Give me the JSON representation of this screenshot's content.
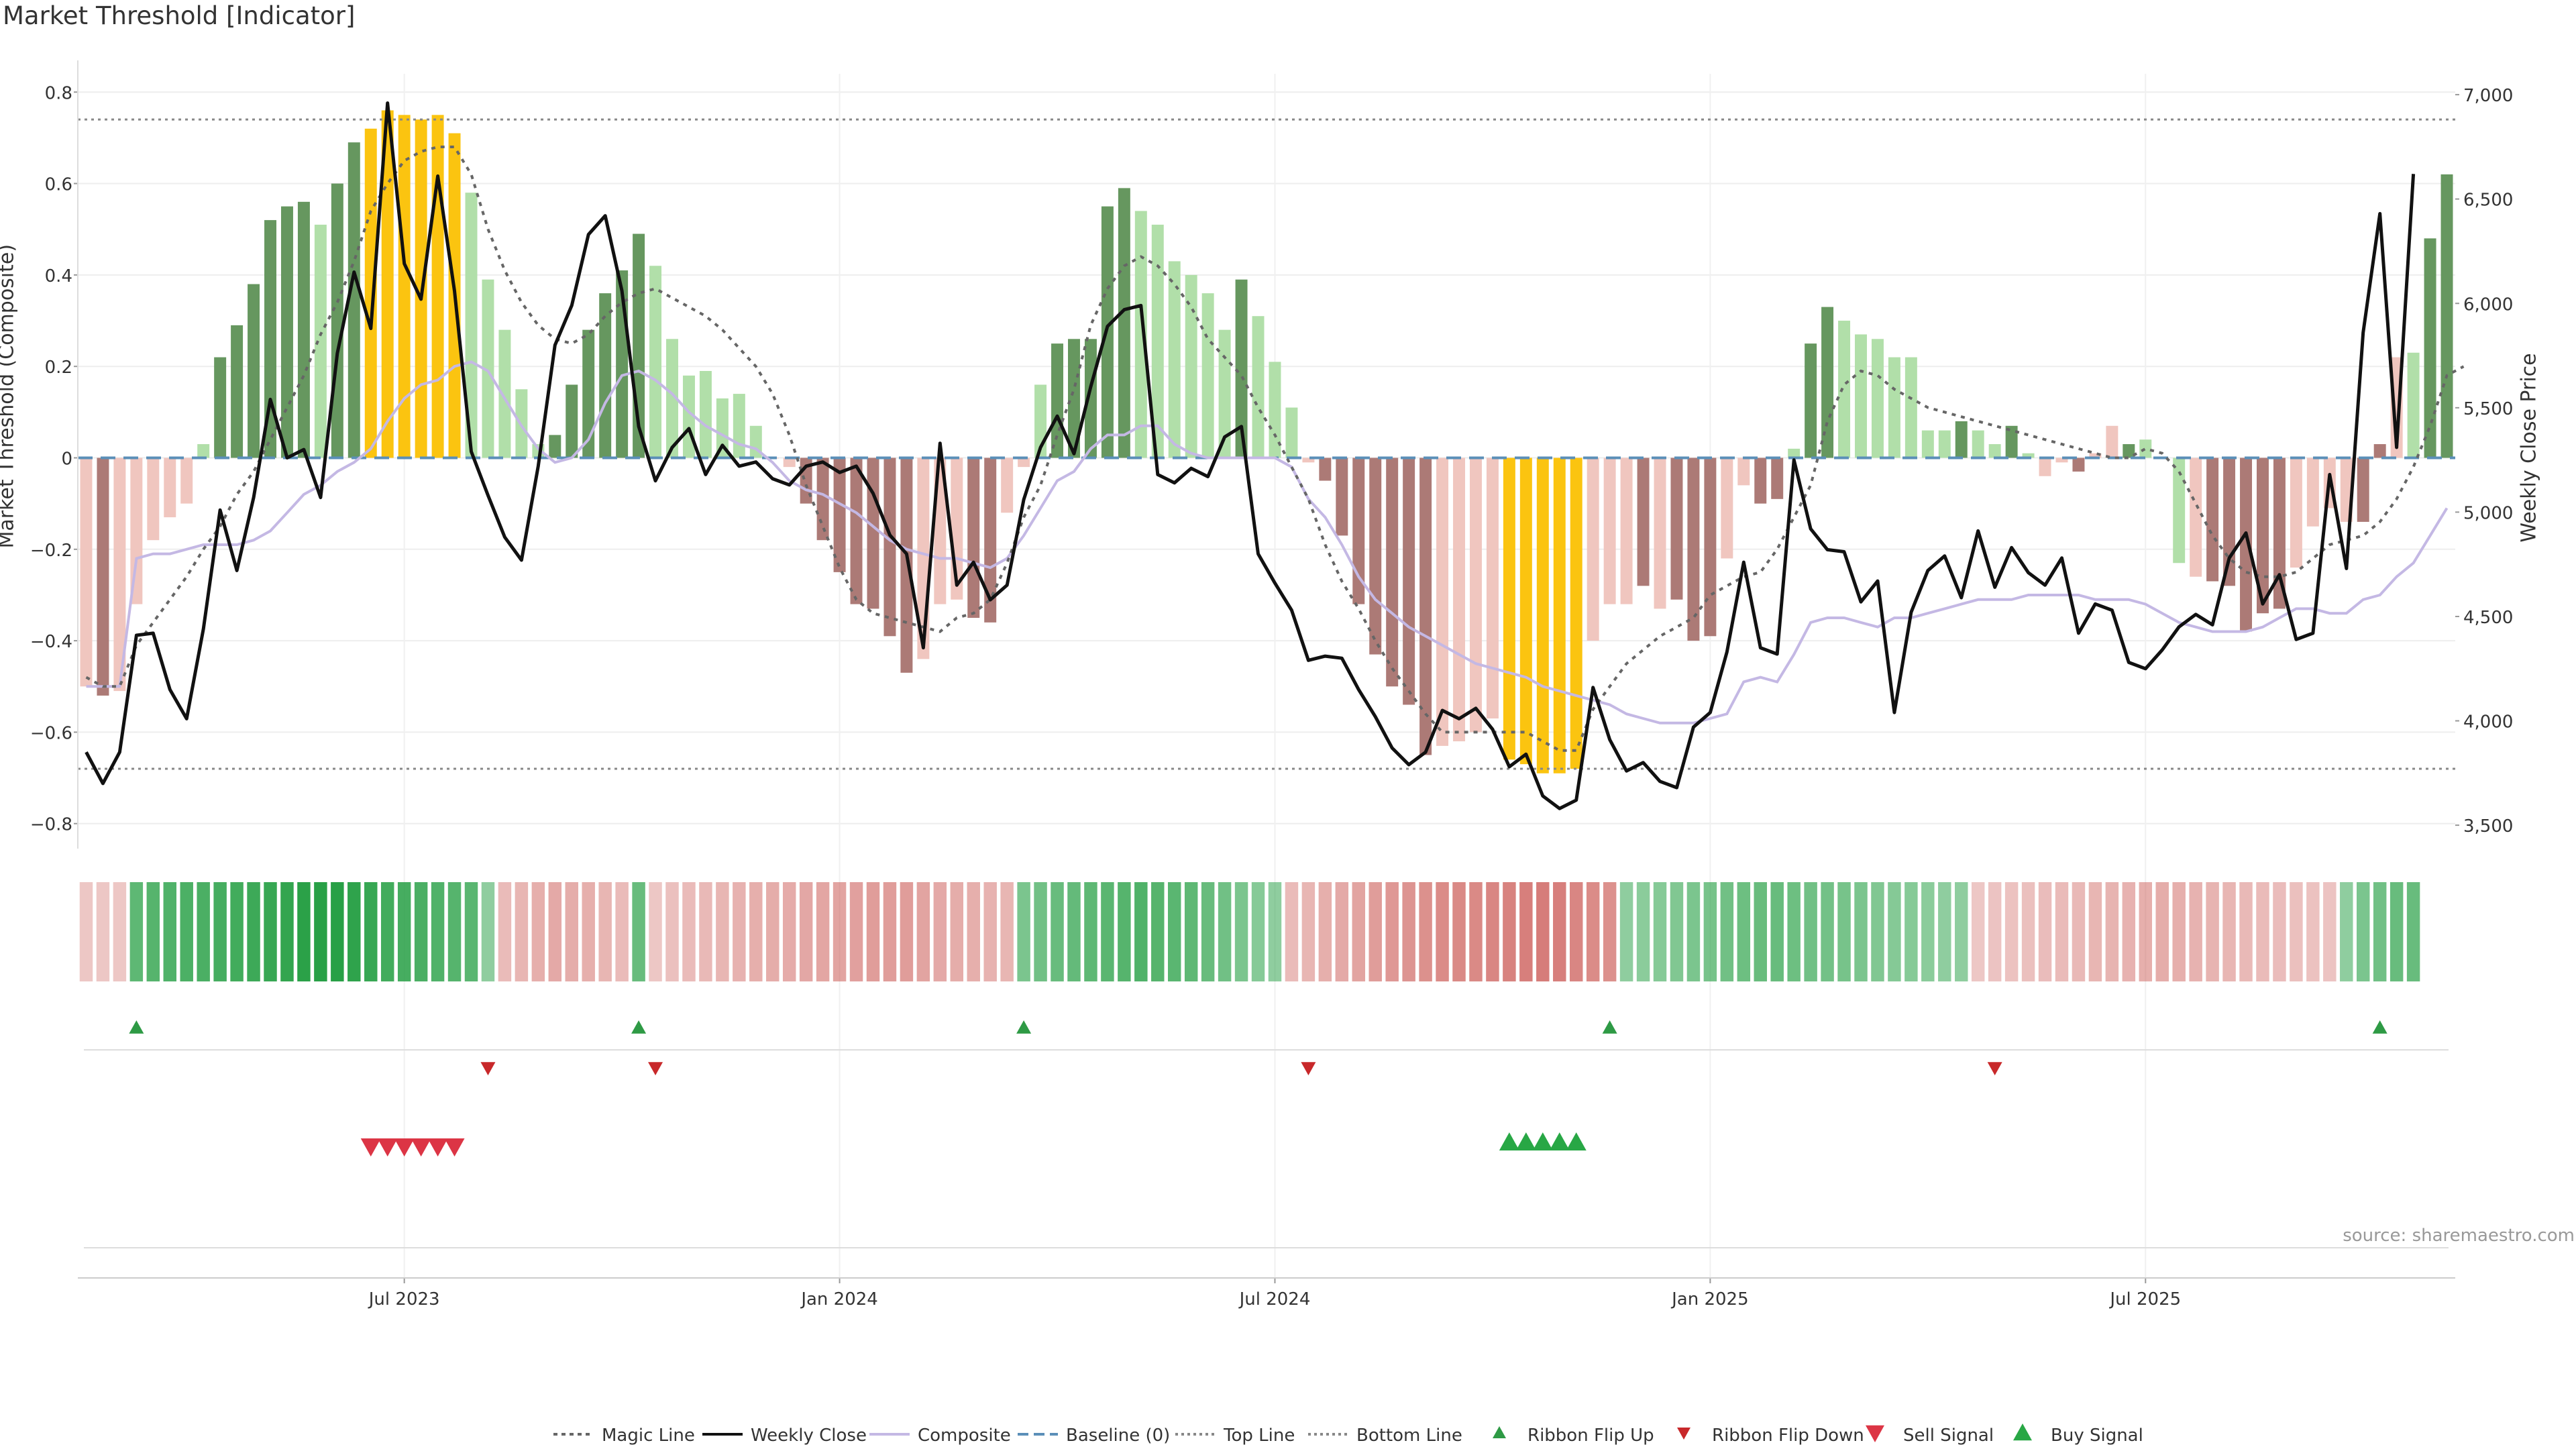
{
  "chart_data": {
    "type": "bar",
    "title": "Market Threshold [Indicator]",
    "ylabel_left": "Market Threshold (Composite)",
    "ylabel_right": "Weekly Close Price",
    "ylim_left": [
      -0.84,
      0.84
    ],
    "ylim_right": [
      3420,
      7100
    ],
    "yticks_left": [
      "0.8",
      "0.6",
      "0.4",
      "0.2",
      "0",
      "−0.2",
      "−0.4",
      "−0.6",
      "−0.8"
    ],
    "yticks_left_values": [
      0.8,
      0.6,
      0.4,
      0.2,
      0,
      -0.2,
      -0.4,
      -0.6,
      -0.8
    ],
    "yticks_right": [
      "7,000",
      "6,500",
      "6,000",
      "5,500",
      "5,000",
      "4,500",
      "4,000",
      "3,500"
    ],
    "yticks_right_values": [
      7000,
      6500,
      6000,
      5500,
      5000,
      4500,
      4000,
      3500
    ],
    "xticks": [
      "Jul 2023",
      "Jan 2024",
      "Jul 2024",
      "Jan 2025",
      "Jul 2025"
    ],
    "xticks_index": [
      19,
      45,
      71,
      97,
      123
    ],
    "top_line": 0.74,
    "bottom_line": -0.68,
    "bars": [
      -0.5,
      -0.52,
      -0.51,
      -0.32,
      -0.18,
      -0.13,
      -0.1,
      0.03,
      0.22,
      0.29,
      0.38,
      0.52,
      0.55,
      0.56,
      0.51,
      0.6,
      0.69,
      0.72,
      0.76,
      0.75,
      0.74,
      0.75,
      0.71,
      0.58,
      0.39,
      0.28,
      0.15,
      0.03,
      0.05,
      0.16,
      0.28,
      0.36,
      0.41,
      0.49,
      0.42,
      0.26,
      0.18,
      0.19,
      0.13,
      0.14,
      0.07,
      0,
      -0.02,
      -0.1,
      -0.18,
      -0.25,
      -0.32,
      -0.33,
      -0.39,
      -0.47,
      -0.44,
      -0.32,
      -0.31,
      -0.35,
      -0.36,
      -0.12,
      -0.02,
      0.16,
      0.25,
      0.26,
      0.26,
      0.55,
      0.59,
      0.54,
      0.51,
      0.43,
      0.4,
      0.36,
      0.28,
      0.39,
      0.31,
      0.21,
      0.11,
      -0.01,
      -0.05,
      -0.17,
      -0.32,
      -0.43,
      -0.5,
      -0.54,
      -0.65,
      -0.63,
      -0.62,
      -0.6,
      -0.57,
      -0.66,
      -0.67,
      -0.69,
      -0.69,
      -0.68,
      -0.4,
      -0.32,
      -0.32,
      -0.28,
      -0.33,
      -0.31,
      -0.4,
      -0.39,
      -0.22,
      -0.06,
      -0.1,
      -0.09,
      0.02,
      0.25,
      0.33,
      0.3,
      0.27,
      0.26,
      0.22,
      0.22,
      0.06,
      0.06,
      0.08,
      0.06,
      0.03,
      0.07,
      0.01,
      -0.04,
      -0.01,
      -0.03,
      0.01,
      0.07,
      0.03,
      0.04,
      0,
      -0.23,
      -0.26,
      -0.27,
      -0.28,
      -0.38,
      -0.34,
      -0.33,
      -0.24,
      -0.15,
      -0.11,
      -0.14,
      -0.14,
      0.03,
      0.22,
      0.23,
      0.48,
      0.62
    ],
    "bar_colors": [
      "#f0c6bf",
      "#ac7a76",
      "#f0c6bf",
      "#f0c6bf",
      "#f0c6bf",
      "#f0c6bf",
      "#f0c6bf",
      "#b1dfa9",
      "#66975f",
      "#66975f",
      "#66975f",
      "#66975f",
      "#66975f",
      "#66975f",
      "#b1dfa9",
      "#66975f",
      "#66975f",
      "#fbc410",
      "#fbc410",
      "#fbc410",
      "#fbc410",
      "#fbc410",
      "#fbc410",
      "#b1dfa9",
      "#b1dfa9",
      "#b1dfa9",
      "#b1dfa9",
      "#b1dfa9",
      "#66975f",
      "#66975f",
      "#66975f",
      "#66975f",
      "#66975f",
      "#66975f",
      "#b1dfa9",
      "#b1dfa9",
      "#b1dfa9",
      "#b1dfa9",
      "#b1dfa9",
      "#b1dfa9",
      "#b1dfa9",
      "#f0c6bf",
      "#f0c6bf",
      "#ac7a76",
      "#ac7a76",
      "#ac7a76",
      "#ac7a76",
      "#ac7a76",
      "#ac7a76",
      "#ac7a76",
      "#f0c6bf",
      "#f0c6bf",
      "#f0c6bf",
      "#ac7a76",
      "#ac7a76",
      "#f0c6bf",
      "#f0c6bf",
      "#b1dfa9",
      "#66975f",
      "#66975f",
      "#66975f",
      "#66975f",
      "#66975f",
      "#b1dfa9",
      "#b1dfa9",
      "#b1dfa9",
      "#b1dfa9",
      "#b1dfa9",
      "#b1dfa9",
      "#66975f",
      "#b1dfa9",
      "#b1dfa9",
      "#b1dfa9",
      "#f0c6bf",
      "#ac7a76",
      "#ac7a76",
      "#ac7a76",
      "#ac7a76",
      "#ac7a76",
      "#ac7a76",
      "#ac7a76",
      "#f0c6bf",
      "#f0c6bf",
      "#f0c6bf",
      "#f0c6bf",
      "#fbc410",
      "#fbc410",
      "#fbc410",
      "#fbc410",
      "#fbc410",
      "#f0c6bf",
      "#f0c6bf",
      "#f0c6bf",
      "#ac7a76",
      "#f0c6bf",
      "#ac7a76",
      "#ac7a76",
      "#ac7a76",
      "#f0c6bf",
      "#f0c6bf",
      "#ac7a76",
      "#ac7a76",
      "#b1dfa9",
      "#66975f",
      "#66975f",
      "#b1dfa9",
      "#b1dfa9",
      "#b1dfa9",
      "#b1dfa9",
      "#b1dfa9",
      "#b1dfa9",
      "#b1dfa9",
      "#66975f",
      "#b1dfa9",
      "#b1dfa9",
      "#66975f",
      "#b1dfa9",
      "#f0c6bf",
      "#f0c6bf",
      "#ac7a76",
      "#f0c6bf",
      "#f0c6bf",
      "#66975f",
      "#b1dfa9",
      "#66975f",
      "#b1dfa9",
      "#f0c6bf",
      "#ac7a76",
      "#ac7a76",
      "#ac7a76",
      "#ac7a76",
      "#ac7a76",
      "#f0c6bf",
      "#f0c6bf",
      "#f0c6bf",
      "#f0c6bf",
      "#ac7a76",
      "#ac7a76",
      "#f0c6bf",
      "#b1dfa9",
      "#66975f",
      "#66975f",
      "#66975f",
      "#66975f"
    ],
    "weekly_close": [
      3850,
      3700,
      3850,
      4410,
      4420,
      4150,
      4010,
      4440,
      5010,
      4720,
      5070,
      5540,
      5260,
      5300,
      5070,
      5760,
      6150,
      5880,
      6960,
      6190,
      6020,
      6610,
      6060,
      5290,
      5080,
      4880,
      4770,
      5220,
      5800,
      5990,
      6330,
      6420,
      6060,
      5410,
      5150,
      5310,
      5400,
      5180,
      5320,
      5220,
      5240,
      5160,
      5130,
      5220,
      5240,
      5190,
      5220,
      5090,
      4890,
      4800,
      4350,
      5330,
      4650,
      4760,
      4580,
      4650,
      5060,
      5310,
      5460,
      5280,
      5600,
      5890,
      5970,
      5990,
      5180,
      5140,
      5210,
      5170,
      5360,
      5410,
      4800,
      4660,
      4530,
      4290,
      4310,
      4300,
      4150,
      4020,
      3870,
      3790,
      3850,
      4050,
      4010,
      4060,
      3960,
      3780,
      3840,
      3640,
      3580,
      3620,
      4160,
      3910,
      3760,
      3800,
      3710,
      3680,
      3970,
      4040,
      4330,
      4760,
      4350,
      4320,
      5250,
      4920,
      4820,
      4810,
      4570,
      4670,
      4040,
      4520,
      4720,
      4790,
      4590,
      4910,
      4640,
      4830,
      4710,
      4650,
      4780,
      4420,
      4560,
      4530,
      4280,
      4250,
      4340,
      4450,
      4510,
      4460,
      4780,
      4900,
      4560,
      4700,
      4390,
      4420,
      5180,
      4730,
      5860,
      6430,
      5310,
      6620
    ],
    "composite": [
      -0.5,
      -0.5,
      -0.5,
      -0.22,
      -0.21,
      -0.21,
      -0.2,
      -0.19,
      -0.19,
      -0.19,
      -0.18,
      -0.16,
      -0.12,
      -0.08,
      -0.06,
      -0.03,
      -0.01,
      0.02,
      0.08,
      0.13,
      0.16,
      0.17,
      0.2,
      0.21,
      0.19,
      0.13,
      0.07,
      0.02,
      -0.01,
      0,
      0.04,
      0.12,
      0.18,
      0.19,
      0.17,
      0.14,
      0.1,
      0.07,
      0.05,
      0.03,
      0.02,
      -0.01,
      -0.05,
      -0.07,
      -0.08,
      -0.1,
      -0.12,
      -0.15,
      -0.18,
      -0.2,
      -0.21,
      -0.22,
      -0.22,
      -0.23,
      -0.24,
      -0.22,
      -0.17,
      -0.11,
      -0.05,
      -0.03,
      0.02,
      0.05,
      0.05,
      0.07,
      0.07,
      0.03,
      0.01,
      0,
      0,
      0,
      0,
      0,
      -0.02,
      -0.09,
      -0.13,
      -0.19,
      -0.26,
      -0.31,
      -0.34,
      -0.37,
      -0.39,
      -0.41,
      -0.43,
      -0.45,
      -0.46,
      -0.47,
      -0.48,
      -0.5,
      -0.51,
      -0.52,
      -0.53,
      -0.54,
      -0.56,
      -0.57,
      -0.58,
      -0.58,
      -0.58,
      -0.57,
      -0.56,
      -0.49,
      -0.48,
      -0.49,
      -0.43,
      -0.36,
      -0.35,
      -0.35,
      -0.36,
      -0.37,
      -0.35,
      -0.35,
      -0.34,
      -0.33,
      -0.32,
      -0.31,
      -0.31,
      -0.31,
      -0.3,
      -0.3,
      -0.3,
      -0.3,
      -0.31,
      -0.31,
      -0.31,
      -0.32,
      -0.34,
      -0.36,
      -0.37,
      -0.38,
      -0.38,
      -0.38,
      -0.37,
      -0.35,
      -0.33,
      -0.33,
      -0.34,
      -0.34,
      -0.31,
      -0.3,
      -0.26,
      -0.23,
      -0.17,
      -0.11
    ],
    "magic_line": [
      -0.48,
      -0.5,
      -0.5,
      -0.41,
      -0.36,
      -0.31,
      -0.26,
      -0.2,
      -0.15,
      -0.08,
      -0.03,
      0.04,
      0.11,
      0.18,
      0.27,
      0.34,
      0.43,
      0.54,
      0.6,
      0.65,
      0.67,
      0.68,
      0.68,
      0.62,
      0.5,
      0.41,
      0.34,
      0.29,
      0.26,
      0.25,
      0.27,
      0.31,
      0.34,
      0.36,
      0.37,
      0.35,
      0.33,
      0.31,
      0.28,
      0.24,
      0.2,
      0.14,
      0.05,
      -0.06,
      -0.15,
      -0.24,
      -0.31,
      -0.34,
      -0.35,
      -0.36,
      -0.37,
      -0.38,
      -0.35,
      -0.34,
      -0.31,
      -0.23,
      -0.13,
      -0.06,
      0.05,
      0.15,
      0.29,
      0.37,
      0.42,
      0.44,
      0.42,
      0.38,
      0.33,
      0.26,
      0.22,
      0.18,
      0.11,
      0.05,
      -0.02,
      -0.09,
      -0.19,
      -0.27,
      -0.33,
      -0.4,
      -0.46,
      -0.51,
      -0.56,
      -0.6,
      -0.6,
      -0.6,
      -0.6,
      -0.6,
      -0.6,
      -0.62,
      -0.64,
      -0.64,
      -0.55,
      -0.5,
      -0.45,
      -0.42,
      -0.39,
      -0.37,
      -0.35,
      -0.3,
      -0.28,
      -0.26,
      -0.25,
      -0.2,
      -0.13,
      -0.06,
      0.08,
      0.16,
      0.19,
      0.18,
      0.15,
      0.13,
      0.11,
      0.1,
      0.09,
      0.08,
      0.07,
      0.06,
      0.05,
      0.04,
      0.03,
      0.02,
      0.01,
      0,
      0,
      0.02,
      0.01,
      -0.03,
      -0.1,
      -0.17,
      -0.22,
      -0.25,
      -0.26,
      -0.26,
      -0.25,
      -0.22,
      -0.19,
      -0.18,
      -0.17,
      -0.14,
      -0.09,
      -0.02,
      0.07,
      0.18,
      0.2
    ],
    "ribbon": [
      -0.2,
      -0.2,
      -0.2,
      0.55,
      0.6,
      0.62,
      0.64,
      0.66,
      0.68,
      0.7,
      0.72,
      0.75,
      0.78,
      0.82,
      0.85,
      0.85,
      0.8,
      0.75,
      0.7,
      0.68,
      0.65,
      0.62,
      0.6,
      0.58,
      0.3,
      -0.3,
      -0.35,
      -0.4,
      -0.45,
      -0.42,
      -0.4,
      -0.35,
      -0.3,
      0.5,
      -0.2,
      -0.25,
      -0.3,
      -0.32,
      -0.35,
      -0.38,
      -0.4,
      -0.42,
      -0.44,
      -0.46,
      -0.48,
      -0.5,
      -0.52,
      -0.55,
      -0.55,
      -0.55,
      -0.5,
      -0.45,
      -0.42,
      -0.4,
      -0.38,
      -0.35,
      0.4,
      0.45,
      0.5,
      0.52,
      0.55,
      0.58,
      0.6,
      0.62,
      0.6,
      0.58,
      0.55,
      0.5,
      0.45,
      0.4,
      0.35,
      0.3,
      -0.3,
      -0.35,
      -0.4,
      -0.45,
      -0.5,
      -0.55,
      -0.6,
      -0.62,
      -0.65,
      -0.7,
      -0.72,
      -0.72,
      -0.75,
      -0.78,
      -0.8,
      -0.82,
      -0.8,
      -0.75,
      -0.7,
      -0.65,
      0.3,
      0.32,
      0.35,
      0.38,
      0.4,
      0.42,
      0.45,
      0.48,
      0.5,
      0.5,
      0.48,
      0.46,
      0.44,
      0.42,
      0.4,
      0.38,
      0.36,
      0.34,
      0.32,
      0.3,
      0.3,
      -0.2,
      -0.22,
      -0.24,
      -0.26,
      -0.28,
      -0.3,
      -0.32,
      -0.34,
      -0.36,
      -0.38,
      -0.4,
      -0.42,
      -0.4,
      -0.38,
      -0.36,
      -0.34,
      -0.32,
      -0.3,
      -0.28,
      -0.26,
      -0.24,
      -0.22,
      0.3,
      0.4,
      0.45,
      0.5,
      0.5
    ],
    "ribbon_flip_up": [
      3,
      33,
      56,
      91,
      137
    ],
    "ribbon_flip_down": [
      24,
      34,
      73,
      114
    ],
    "sell_signal": [
      17,
      18,
      19,
      20,
      21,
      22
    ],
    "buy_signal": [
      85,
      86,
      87,
      88,
      89
    ],
    "source": "source: sharemaestro.com",
    "legend": [
      "Magic Line",
      "Weekly Close",
      "Composite",
      "Baseline (0)",
      "Top Line",
      "Bottom Line",
      "Ribbon Flip Up",
      "Ribbon Flip Down",
      "Sell Signal",
      "Buy Signal"
    ],
    "legend_placement": "bottom-center",
    "colors": {
      "bull_dark": "#66975f",
      "bull_light": "#b1dfa9",
      "bear_dark": "#ac7a76",
      "bear_light": "#f0c6bf",
      "extreme": "#fbc410",
      "close": "#111111",
      "composite": "#c4b8e4",
      "baseline": "#5b8fb8",
      "flip_up": "#2e9a45",
      "flip_down": "#c8282a",
      "sell": "#dc3545",
      "buy": "#28a745"
    }
  }
}
